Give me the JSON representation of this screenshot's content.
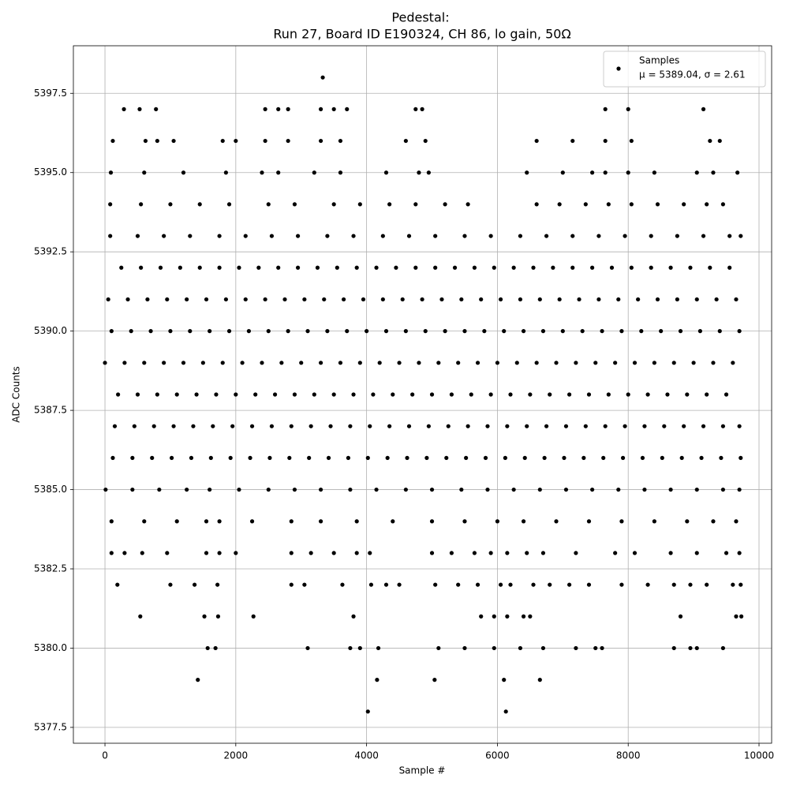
{
  "chart_data": {
    "type": "scatter",
    "title": "Pedestal:",
    "subtitle": "Run 27, Board ID E190324, CH 86, lo gain, 50Ω",
    "x_label": "Sample #",
    "y_label": "ADC Counts",
    "legend": {
      "name": "Samples",
      "stats": "μ = 5389.04, σ = 2.61",
      "position": "upper right"
    },
    "color": "#000000",
    "grid": true,
    "xlim": [
      -483,
      10193
    ],
    "ylim": [
      5377.0,
      5399.0
    ],
    "xticks": [
      0,
      2000,
      4000,
      6000,
      8000,
      10000
    ],
    "yticks": [
      5377.5,
      {
        "value": 5380,
        "label": "5380.0"
      },
      5382.5,
      {
        "value": 5385,
        "label": "5385.0"
      },
      5387.5,
      {
        "value": 5390,
        "label": "5390.0"
      },
      5392.5,
      {
        "value": 5395,
        "label": "5395.0"
      },
      5397.5
    ],
    "levels": [
      {
        "y": 5389,
        "x": [
          0,
          300,
          600,
          900,
          1200,
          1500,
          1800,
          2100,
          2400,
          2700,
          3000,
          3300,
          3600,
          3900,
          4200,
          4500,
          4800,
          5100,
          5400,
          5700,
          6000,
          6300,
          6600,
          6900,
          7200,
          7500,
          7800,
          8100,
          8400,
          8700,
          9000,
          9300,
          9600
        ]
      },
      {
        "y": 5390,
        "x": [
          100,
          400,
          700,
          1000,
          1300,
          1600,
          1900,
          2200,
          2500,
          2800,
          3100,
          3400,
          3700,
          4000,
          4300,
          4600,
          4900,
          5200,
          5500,
          5800,
          6100,
          6400,
          6700,
          7000,
          7300,
          7600,
          7900,
          8200,
          8500,
          8800,
          9100,
          9400,
          9700
        ]
      },
      {
        "y": 5388,
        "x": [
          200,
          500,
          800,
          1100,
          1400,
          1700,
          2000,
          2300,
          2600,
          2900,
          3200,
          3500,
          3800,
          4100,
          4400,
          4700,
          5000,
          5300,
          5600,
          5900,
          6200,
          6500,
          6800,
          7100,
          7400,
          7700,
          8000,
          8300,
          8600,
          8900,
          9200,
          9500
        ]
      },
      {
        "y": 5391,
        "x": [
          50,
          350,
          650,
          950,
          1250,
          1550,
          1850,
          2150,
          2450,
          2750,
          3050,
          3350,
          3650,
          3950,
          4250,
          4550,
          4850,
          5150,
          5450,
          5750,
          6050,
          6350,
          6650,
          6950,
          7250,
          7550,
          7850,
          8150,
          8450,
          8750,
          9050,
          9350,
          9650
        ]
      },
      {
        "y": 5387,
        "x": [
          150,
          450,
          750,
          1050,
          1350,
          1650,
          1950,
          2250,
          2550,
          2850,
          3150,
          3450,
          3750,
          4050,
          4350,
          4650,
          4950,
          5250,
          5550,
          5850,
          6150,
          6450,
          6750,
          7050,
          7350,
          7650,
          7950,
          8250,
          8550,
          8850,
          9150,
          9450,
          9700
        ]
      },
      {
        "y": 5392,
        "x": [
          250,
          550,
          850,
          1150,
          1450,
          1750,
          2050,
          2350,
          2650,
          2950,
          3250,
          3550,
          3850,
          4150,
          4450,
          4750,
          5050,
          5350,
          5650,
          5950,
          6250,
          6550,
          6850,
          7150,
          7450,
          7750,
          8050,
          8350,
          8650,
          8950,
          9250,
          9550
        ]
      },
      {
        "y": 5386,
        "x": [
          120,
          420,
          720,
          1020,
          1320,
          1620,
          1920,
          2220,
          2520,
          2820,
          3120,
          3420,
          3720,
          4020,
          4320,
          4620,
          4920,
          5220,
          5520,
          5820,
          6120,
          6420,
          6720,
          7020,
          7320,
          7620,
          7920,
          8220,
          8520,
          8820,
          9120,
          9420,
          9720
        ]
      },
      {
        "y": 5385,
        "x": [
          10,
          420,
          830,
          1250,
          1600,
          2050,
          2500,
          2900,
          3300,
          3750,
          4150,
          4600,
          5000,
          5450,
          5850,
          6250,
          6650,
          7050,
          7450,
          7850,
          8250,
          8650,
          9050,
          9450,
          9700
        ]
      },
      {
        "y": 5393,
        "x": [
          80,
          500,
          900,
          1300,
          1750,
          2150,
          2550,
          2950,
          3400,
          3800,
          4250,
          4650,
          5050,
          5500,
          5900,
          6350,
          6750,
          7150,
          7550,
          7950,
          8350,
          8750,
          9150,
          9550,
          9720
        ]
      },
      {
        "y": 5384,
        "x": [
          100,
          600,
          1100,
          1550,
          1750,
          2250,
          2850,
          3300,
          3850,
          4400,
          5000,
          5500,
          6000,
          6400,
          6900,
          7400,
          7900,
          8400,
          8900,
          9300,
          9650
        ]
      },
      {
        "y": 5394,
        "x": [
          80,
          550,
          1000,
          1450,
          1900,
          2500,
          2900,
          3500,
          3900,
          4350,
          4750,
          5200,
          5550,
          6600,
          6950,
          7350,
          7700,
          8050,
          8450,
          8850,
          9200,
          9450
        ]
      },
      {
        "y": 5395,
        "x": [
          90,
          600,
          1200,
          1850,
          2400,
          2650,
          3200,
          3600,
          4300,
          4800,
          4950,
          6450,
          7000,
          7450,
          7650,
          8000,
          8400,
          9050,
          9300,
          9670
        ]
      },
      {
        "y": 5396,
        "x": [
          120,
          620,
          800,
          1050,
          1800,
          2000,
          2450,
          2800,
          3300,
          3600,
          4600,
          4900,
          6600,
          7150,
          7650,
          8050,
          9250,
          9400
        ]
      },
      {
        "y": 5397,
        "x": [
          290,
          530,
          780,
          2450,
          2650,
          2800,
          3300,
          3500,
          3700,
          4750,
          4850,
          7650,
          8000,
          9150
        ]
      },
      {
        "y": 5398,
        "x": [
          3330
        ]
      },
      {
        "y": 5383,
        "x": [
          100,
          300,
          570,
          950,
          1550,
          1750,
          2000,
          2850,
          3150,
          3500,
          3850,
          4050,
          5000,
          5300,
          5650,
          5900,
          6150,
          6450,
          6700,
          7200,
          7800,
          8100,
          8650,
          9050,
          9500,
          9700
        ]
      },
      {
        "y": 5382,
        "x": [
          190,
          1000,
          1370,
          1720,
          2850,
          3050,
          3630,
          4070,
          4300,
          4500,
          5050,
          5400,
          5700,
          6050,
          6200,
          6550,
          6800,
          7100,
          7400,
          7900,
          8300,
          8700,
          8950,
          9200,
          9600,
          9720
        ]
      },
      {
        "y": 5381,
        "x": [
          540,
          1520,
          1730,
          2270,
          3800,
          5750,
          5950,
          6150,
          6400,
          6500,
          8800,
          9650,
          9730
        ]
      },
      {
        "y": 5380,
        "x": [
          1570,
          1690,
          3100,
          3750,
          3900,
          4180,
          5100,
          5500,
          5950,
          6350,
          6700,
          7200,
          7500,
          7600,
          8700,
          8950,
          9050,
          9450
        ]
      },
      {
        "y": 5379,
        "x": [
          1420,
          4160,
          5040,
          6100,
          6650
        ]
      },
      {
        "y": 5378,
        "x": [
          4020,
          6130
        ]
      }
    ]
  }
}
